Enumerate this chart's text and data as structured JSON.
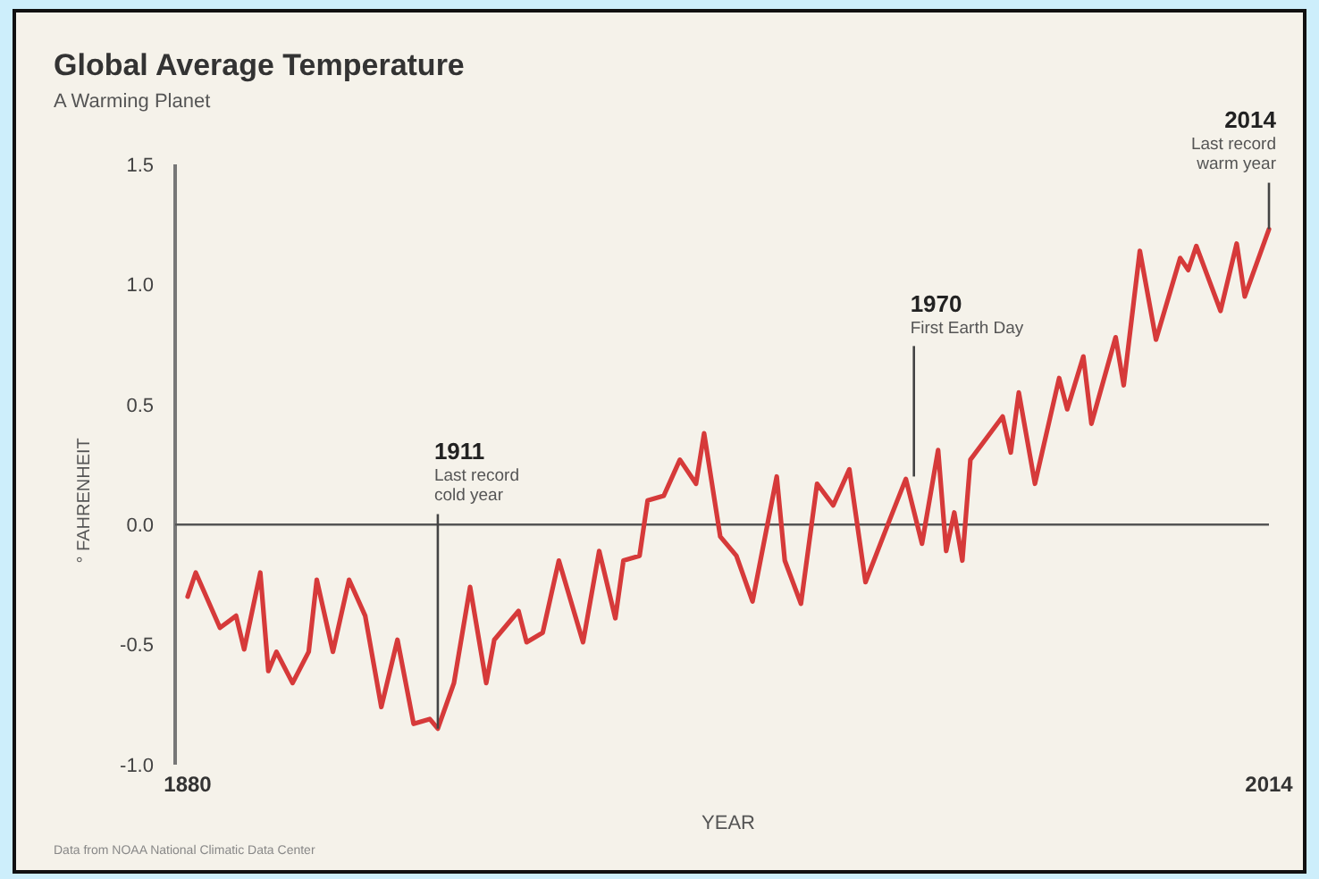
{
  "chart_data": {
    "type": "line",
    "title": "Global Average Temperature",
    "subtitle": "A Warming Planet",
    "xlabel": "YEAR",
    "ylabel": "° FAHRENHEIT",
    "x": [
      1880,
      1881,
      1884,
      1886,
      1887,
      1889,
      1890,
      1891,
      1893,
      1895,
      1896,
      1898,
      1900,
      1902,
      1904,
      1906,
      1908,
      1910,
      1911,
      1913,
      1915,
      1917,
      1918,
      1921,
      1922,
      1924,
      1926,
      1929,
      1931,
      1933,
      1934,
      1936,
      1937,
      1939,
      1941,
      1943,
      1944,
      1946,
      1948,
      1950,
      1953,
      1954,
      1956,
      1958,
      1960,
      1962,
      1964,
      1967,
      1969,
      1971,
      1973,
      1974,
      1975,
      1976,
      1977,
      1981,
      1982,
      1983,
      1985,
      1988,
      1989,
      1991,
      1992,
      1995,
      1996,
      1998,
      2000,
      2003,
      2004,
      2005,
      2008,
      2010,
      2011,
      2014
    ],
    "series": [
      {
        "color": "#d63a3a",
        "values": [
          -0.3,
          -0.2,
          -0.43,
          -0.38,
          -0.52,
          -0.2,
          -0.61,
          -0.53,
          -0.66,
          -0.53,
          -0.23,
          -0.53,
          -0.23,
          -0.38,
          -0.76,
          -0.48,
          -0.83,
          -0.81,
          -0.85,
          -0.66,
          -0.26,
          -0.66,
          -0.48,
          -0.36,
          -0.49,
          -0.45,
          -0.15,
          -0.49,
          -0.11,
          -0.39,
          -0.15,
          -0.13,
          0.1,
          0.12,
          0.27,
          0.17,
          0.38,
          -0.05,
          -0.13,
          -0.32,
          0.2,
          -0.15,
          -0.33,
          0.17,
          0.08,
          0.23,
          -0.24,
          0.02,
          0.19,
          -0.08,
          0.31,
          -0.11,
          0.05,
          -0.15,
          0.27,
          0.45,
          0.3,
          0.55,
          0.17,
          0.61,
          0.48,
          0.7,
          0.42,
          0.78,
          0.58,
          1.14,
          0.77,
          1.11,
          1.06,
          1.16,
          0.89,
          1.17,
          0.95,
          1.23
        ]
      }
    ],
    "xlim": [
      1880,
      2014
    ],
    "xticks": [
      1880,
      2014
    ],
    "ylim": [
      -1.0,
      1.5
    ],
    "yticks": [
      {
        "value": -1.0,
        "label": "-1.0"
      },
      -0.5,
      {
        "value": 0,
        "label": "0.0"
      },
      0.5,
      {
        "value": 1.0,
        "label": "1.0"
      },
      1.5
    ],
    "grid": false,
    "marker": "none",
    "line_style": "solid",
    "ref_lines": [
      {
        "axis": "y",
        "value": 0
      }
    ],
    "annotations": [
      {
        "text": "1911\nLast record\ncold year",
        "x": 1911,
        "y": -0.85
      },
      {
        "text": "1970\nFirst Earth Day",
        "x": 1970,
        "y": 0.2
      },
      {
        "text": "2014\nLast record\nwarm year",
        "x": 2014,
        "y": 1.23
      },
      "Data from NOAA National Climatic Data Center"
    ]
  }
}
